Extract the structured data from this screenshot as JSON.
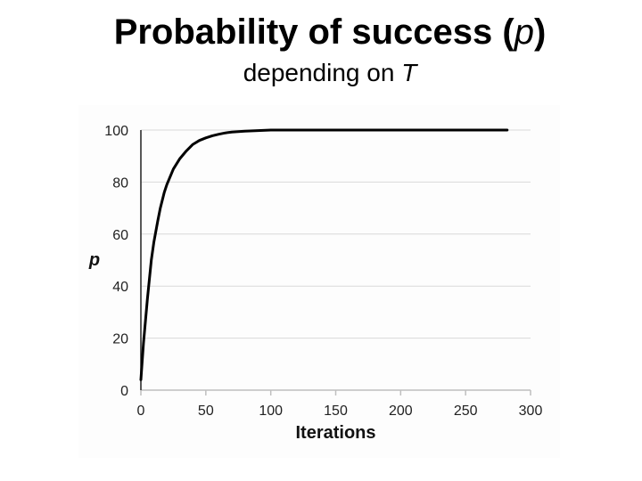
{
  "title": {
    "main": "Probability of success (",
    "var": "p",
    "end": ")"
  },
  "subtitle": {
    "text": "depending on ",
    "var": "T"
  },
  "chart_data": {
    "type": "line",
    "xlabel": "Iterations",
    "ylabel": "p",
    "xlim": [
      0,
      300
    ],
    "ylim": [
      0,
      100
    ],
    "x_ticks": [
      0,
      50,
      100,
      150,
      200,
      250,
      300
    ],
    "y_ticks": [
      0,
      20,
      40,
      60,
      80,
      100
    ],
    "grid": true,
    "series": [
      {
        "color": "#000000",
        "x": [
          0,
          2,
          5,
          8,
          10,
          13,
          15,
          18,
          20,
          25,
          30,
          35,
          40,
          45,
          50,
          55,
          60,
          65,
          70,
          80,
          90,
          100,
          120,
          150,
          200,
          250,
          282
        ],
        "y": [
          4,
          18,
          35,
          50,
          57,
          65,
          70,
          76,
          79,
          85,
          89,
          92,
          94.5,
          96,
          97,
          97.8,
          98.4,
          98.9,
          99.2,
          99.6,
          99.8,
          100,
          100,
          100,
          100,
          100,
          100
        ]
      }
    ]
  }
}
